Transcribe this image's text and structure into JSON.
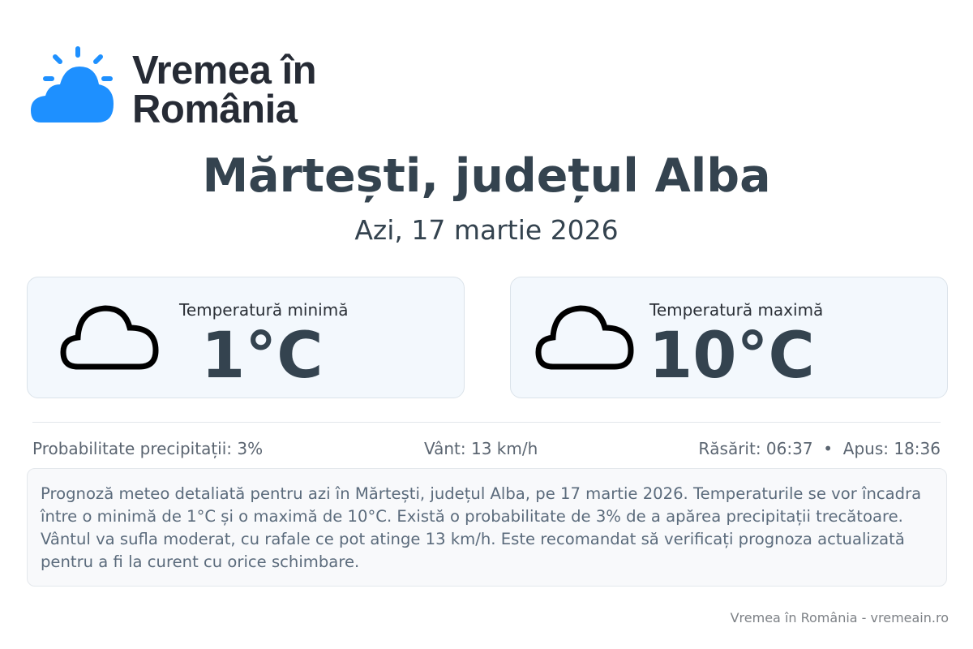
{
  "logo": {
    "line1": "Vremea în",
    "line2": "România",
    "icon": "sun-cloud-icon",
    "color": "#1e90ff"
  },
  "title": "Mărtești, județul Alba",
  "date": "Azi, 17 martie 2026",
  "cards": [
    {
      "label": "Temperatură minimă",
      "value": "1°C",
      "icon": "cloud-icon"
    },
    {
      "label": "Temperatură maximă",
      "value": "10°C",
      "icon": "cloud-icon"
    }
  ],
  "info": {
    "precip": "Probabilitate precipitații: 3%",
    "wind": "Vânt: 13 km/h",
    "sun": "Răsărit: 06:37  •  Apus: 18:36"
  },
  "description": "Prognoză meteo detaliată pentru azi în Mărtești, județul Alba, pe 17 martie 2026. Temperaturile se vor încadra între o minimă de 1°C și o maximă de 10°C. Există o probabilitate de 3% de a apărea precipitații trecătoare. Vântul va sufla moderat, cu rafale ce pot atinge 13 km/h. Este recomandat să verificați prognoza actualizată pentru a fi la curent cu orice schimbare.",
  "footer": "Vremea în România - vremeain.ro"
}
